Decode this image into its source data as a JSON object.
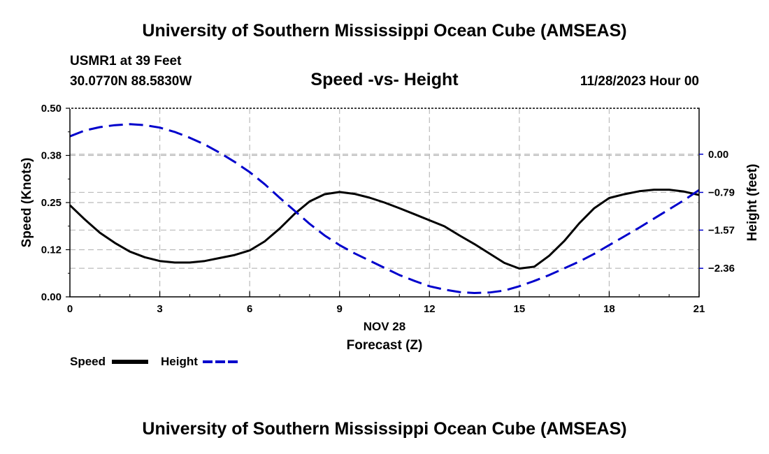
{
  "page": {
    "top_title": "University of Southern Mississippi Ocean Cube (AMSEAS)",
    "bottom_title": "University of Southern Mississippi Ocean Cube (AMSEAS)",
    "station": "USMR1 at 39 Feet",
    "coords": "30.0770N  88.5830W",
    "subtitle": "Speed -vs- Height",
    "datetime": "11/28/2023 Hour 00"
  },
  "legend": {
    "speed_label": "Speed",
    "height_label": "Height"
  },
  "colors": {
    "speed": "#000000",
    "height": "#0000cc",
    "grid": "#bbbbbb"
  },
  "chart_data": {
    "type": "line",
    "title": "Speed -vs- Height",
    "xlabel": "Forecast (Z)",
    "xdate_label": "NOV 28",
    "ylabel": "Speed (Knots)",
    "y2label": "Height (feet)",
    "xlim": [
      0,
      21
    ],
    "ylim": [
      0,
      0.5
    ],
    "y2lim": [
      0.95,
      -2.95
    ],
    "x_ticks": [
      0,
      3,
      6,
      9,
      12,
      15,
      18,
      21
    ],
    "x_tick_labels": [
      "0",
      "3",
      "6",
      "9",
      "12",
      "15",
      "18",
      "21"
    ],
    "y_ticks": [
      0,
      0.125,
      0.25,
      0.375,
      0.5
    ],
    "y_tick_labels": [
      "0.00",
      "0.12",
      "0.25",
      "0.38",
      "0.50"
    ],
    "y2_ticks": [
      0.0,
      -0.79,
      -1.57,
      -2.36
    ],
    "y2_tick_labels": [
      "0.00",
      "−0.79",
      "−1.57",
      "−2.36"
    ],
    "series": [
      {
        "name": "Speed",
        "axis": "left",
        "style": "solid",
        "x": [
          0,
          0.5,
          1,
          1.5,
          2,
          2.5,
          3,
          3.5,
          4,
          4.5,
          5,
          5.5,
          6,
          6.5,
          7,
          7.5,
          8,
          8.5,
          9,
          9.5,
          10,
          10.5,
          11,
          11.5,
          12,
          12.5,
          13,
          13.5,
          14,
          14.5,
          15,
          15.5,
          16,
          16.5,
          17,
          17.5,
          18,
          18.5,
          19,
          19.5,
          20,
          20.5,
          21
        ],
        "values": [
          0.243,
          0.205,
          0.17,
          0.143,
          0.12,
          0.105,
          0.095,
          0.091,
          0.091,
          0.095,
          0.103,
          0.111,
          0.123,
          0.147,
          0.181,
          0.22,
          0.253,
          0.272,
          0.278,
          0.273,
          0.263,
          0.25,
          0.235,
          0.219,
          0.203,
          0.187,
          0.163,
          0.14,
          0.115,
          0.09,
          0.075,
          0.08,
          0.109,
          0.148,
          0.195,
          0.235,
          0.262,
          0.272,
          0.28,
          0.284,
          0.284,
          0.279,
          0.27
        ]
      },
      {
        "name": "Height",
        "axis": "right",
        "style": "dashed",
        "x": [
          0,
          0.5,
          1,
          1.5,
          2,
          2.5,
          3,
          3.5,
          4,
          4.5,
          5,
          5.5,
          6,
          6.5,
          7,
          7.5,
          8,
          8.5,
          9,
          9.5,
          10,
          10.5,
          11,
          11.5,
          12,
          12.5,
          13,
          13.5,
          14,
          14.5,
          15,
          15.5,
          16,
          16.5,
          17,
          17.5,
          18,
          18.5,
          19,
          19.5,
          20,
          20.5,
          21
        ],
        "values": [
          0.37,
          0.49,
          0.56,
          0.6,
          0.62,
          0.6,
          0.55,
          0.46,
          0.34,
          0.2,
          0.03,
          -0.16,
          -0.37,
          -0.62,
          -0.9,
          -1.17,
          -1.44,
          -1.68,
          -1.88,
          -2.05,
          -2.2,
          -2.35,
          -2.5,
          -2.62,
          -2.73,
          -2.8,
          -2.85,
          -2.87,
          -2.86,
          -2.82,
          -2.73,
          -2.62,
          -2.5,
          -2.36,
          -2.22,
          -2.06,
          -1.88,
          -1.7,
          -1.52,
          -1.33,
          -1.14,
          -0.95,
          -0.74
        ]
      }
    ]
  }
}
